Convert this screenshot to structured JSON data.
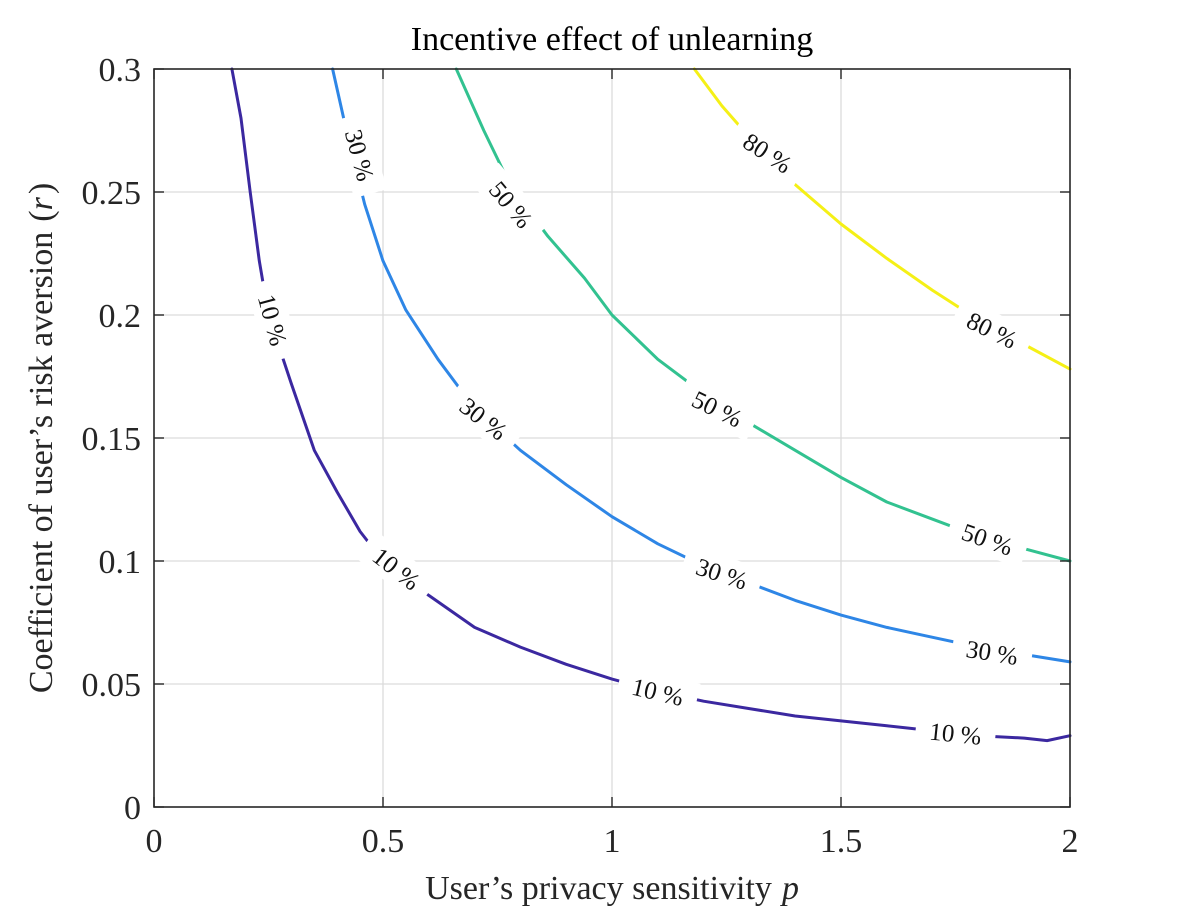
{
  "chart_data": {
    "type": "contour",
    "title": "Incentive effect of unlearning",
    "xlabel": "User’s privacy sensitivity",
    "xlabel_var": "p",
    "ylabel": "Coefficient of user’s risk aversion",
    "ylabel_var": "r",
    "xlim": [
      0,
      2
    ],
    "ylim": [
      0,
      0.3
    ],
    "xticks": [
      0,
      0.5,
      1,
      1.5,
      2
    ],
    "xtick_labels": [
      "0",
      "0.5",
      "1",
      "1.5",
      "2"
    ],
    "yticks": [
      0,
      0.05,
      0.1,
      0.15,
      0.2,
      0.25,
      0.3
    ],
    "ytick_labels": [
      "0",
      "0.05",
      "0.1",
      "0.15",
      "0.2",
      "0.25",
      "0.3"
    ],
    "grid": true,
    "series": [
      {
        "label": "10 %",
        "color": "#3b28a0",
        "points": [
          [
            0.17,
            0.3
          ],
          [
            0.19,
            0.28
          ],
          [
            0.21,
            0.25
          ],
          [
            0.23,
            0.222
          ],
          [
            0.25,
            0.2
          ],
          [
            0.3,
            0.172
          ],
          [
            0.35,
            0.145
          ],
          [
            0.4,
            0.128
          ],
          [
            0.45,
            0.112
          ],
          [
            0.5,
            0.1
          ],
          [
            0.6,
            0.086
          ],
          [
            0.7,
            0.073
          ],
          [
            0.8,
            0.065
          ],
          [
            0.9,
            0.058
          ],
          [
            1.0,
            0.052
          ],
          [
            1.1,
            0.047
          ],
          [
            1.2,
            0.043
          ],
          [
            1.3,
            0.04
          ],
          [
            1.4,
            0.037
          ],
          [
            1.5,
            0.035
          ],
          [
            1.6,
            0.033
          ],
          [
            1.7,
            0.031
          ],
          [
            1.8,
            0.029
          ],
          [
            1.9,
            0.028
          ],
          [
            1.95,
            0.027
          ],
          [
            2.0,
            0.029
          ]
        ],
        "labels_at": [
          [
            0.26,
            0.198,
            75
          ],
          [
            0.53,
            0.097,
            38
          ],
          [
            1.1,
            0.047,
            13
          ],
          [
            1.75,
            0.03,
            6
          ]
        ]
      },
      {
        "label": "30 %",
        "color": "#2e86e6",
        "points": [
          [
            0.39,
            0.3
          ],
          [
            0.42,
            0.275
          ],
          [
            0.46,
            0.245
          ],
          [
            0.5,
            0.222
          ],
          [
            0.55,
            0.202
          ],
          [
            0.62,
            0.182
          ],
          [
            0.7,
            0.162
          ],
          [
            0.8,
            0.145
          ],
          [
            0.9,
            0.131
          ],
          [
            1.0,
            0.118
          ],
          [
            1.1,
            0.107
          ],
          [
            1.2,
            0.098
          ],
          [
            1.3,
            0.091
          ],
          [
            1.4,
            0.084
          ],
          [
            1.5,
            0.078
          ],
          [
            1.6,
            0.073
          ],
          [
            1.7,
            0.069
          ],
          [
            1.8,
            0.065
          ],
          [
            1.9,
            0.062
          ],
          [
            2.0,
            0.059
          ]
        ],
        "labels_at": [
          [
            0.45,
            0.265,
            75
          ],
          [
            0.72,
            0.158,
            38
          ],
          [
            1.24,
            0.095,
            18
          ],
          [
            1.83,
            0.063,
            9
          ]
        ]
      },
      {
        "label": "50 %",
        "color": "#32c290",
        "points": [
          [
            0.66,
            0.3
          ],
          [
            0.72,
            0.275
          ],
          [
            0.78,
            0.252
          ],
          [
            0.86,
            0.232
          ],
          [
            0.94,
            0.215
          ],
          [
            1.0,
            0.2
          ],
          [
            1.1,
            0.182
          ],
          [
            1.2,
            0.168
          ],
          [
            1.3,
            0.156
          ],
          [
            1.4,
            0.145
          ],
          [
            1.5,
            0.134
          ],
          [
            1.6,
            0.124
          ],
          [
            1.7,
            0.117
          ],
          [
            1.8,
            0.11
          ],
          [
            1.9,
            0.105
          ],
          [
            2.0,
            0.1
          ]
        ],
        "labels_at": [
          [
            0.78,
            0.245,
            50
          ],
          [
            1.23,
            0.162,
            26
          ],
          [
            1.82,
            0.109,
            19
          ]
        ]
      },
      {
        "label": "80 %",
        "color": "#f5f016",
        "points": [
          [
            1.18,
            0.3
          ],
          [
            1.24,
            0.285
          ],
          [
            1.32,
            0.268
          ],
          [
            1.4,
            0.253
          ],
          [
            1.5,
            0.237
          ],
          [
            1.6,
            0.223
          ],
          [
            1.7,
            0.21
          ],
          [
            1.8,
            0.198
          ],
          [
            1.9,
            0.188
          ],
          [
            2.0,
            0.178
          ]
        ],
        "labels_at": [
          [
            1.34,
            0.266,
            33
          ],
          [
            1.83,
            0.194,
            26
          ]
        ]
      }
    ]
  }
}
